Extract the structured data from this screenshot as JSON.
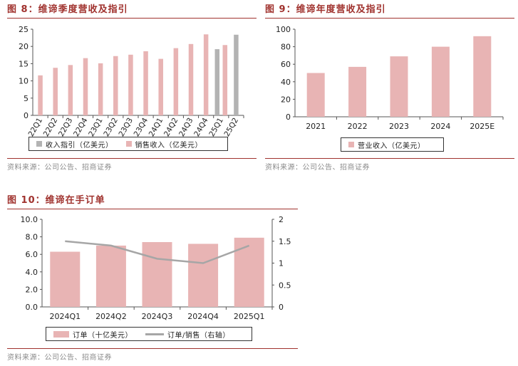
{
  "charts_meta": {
    "fig8": {
      "title": "图 8：维谛季度营收及指引",
      "source": "资料来源：公司公告、招商证券"
    },
    "fig9": {
      "title": "图 9：维谛年度营收及指引",
      "source": "资料来源：公司公告、招商证券"
    },
    "fig10": {
      "title": "图 10：维谛在手订单",
      "source": "资料来源：公司公告、招商证券"
    }
  },
  "colors": {
    "accent": "#a0322e",
    "bar_pink": "#e8b4b4",
    "bar_gray": "#b3b3b3",
    "line_gray": "#a6a6a6"
  },
  "chart_data": [
    {
      "id": "fig8",
      "type": "bar",
      "title": "图 8：维谛季度营收及指引",
      "categories": [
        "22Q1",
        "22Q2",
        "22Q3",
        "22Q4",
        "23Q1",
        "23Q2",
        "23Q3",
        "23Q4",
        "24Q1",
        "24Q2",
        "24Q3",
        "24Q4",
        "25Q1",
        "25Q2"
      ],
      "series": [
        {
          "name": "收入指引（亿美元）",
          "color": "#b3b3b3",
          "values": [
            null,
            null,
            null,
            null,
            null,
            null,
            null,
            null,
            null,
            null,
            null,
            null,
            19.2,
            23.4
          ]
        },
        {
          "name": "销售收入（亿美元）",
          "color": "#e8b4b4",
          "values": [
            11.6,
            13.8,
            14.6,
            16.6,
            15.1,
            17.2,
            17.6,
            18.6,
            16.4,
            19.5,
            20.7,
            23.5,
            20.4,
            null
          ]
        }
      ],
      "yticks": [
        "0",
        "5",
        "10",
        "15",
        "20",
        "25"
      ],
      "ylim": [
        0,
        25
      ],
      "legend_position": "bottom",
      "grid": false
    },
    {
      "id": "fig9",
      "type": "bar",
      "title": "图 9：维谛年度营收及指引",
      "categories": [
        "2021",
        "2022",
        "2023",
        "2024",
        "2025E"
      ],
      "series": [
        {
          "name": "营业收入（亿美元）",
          "color": "#e8b4b4",
          "values": [
            50,
            57,
            69,
            80,
            92
          ]
        }
      ],
      "yticks": [
        "0",
        "20",
        "40",
        "60",
        "80",
        "100"
      ],
      "ylim": [
        0,
        100
      ],
      "legend_position": "bottom",
      "grid": false
    },
    {
      "id": "fig10",
      "type": "bar",
      "title": "图 10：维谛在手订单",
      "categories": [
        "2024Q1",
        "2024Q2",
        "2024Q3",
        "2024Q4",
        "2025Q1"
      ],
      "series": [
        {
          "name": "订单（十亿美元）",
          "color": "#e8b4b4",
          "values": [
            6.3,
            7.0,
            7.4,
            7.2,
            7.9
          ],
          "axis": "left"
        },
        {
          "name": "订单/销售（右轴）",
          "type": "line",
          "color": "#a6a6a6",
          "values": [
            1.5,
            1.4,
            1.1,
            1.0,
            1.4
          ],
          "axis": "right"
        }
      ],
      "yticks": [
        "0.0",
        "2.0",
        "4.0",
        "6.0",
        "8.0",
        "10.0"
      ],
      "ylim": [
        0,
        10
      ],
      "y2ticks": [
        "0",
        "0.5",
        "1",
        "1.5",
        "2"
      ],
      "y2lim": [
        0,
        2
      ],
      "legend_position": "bottom",
      "grid": false
    }
  ]
}
